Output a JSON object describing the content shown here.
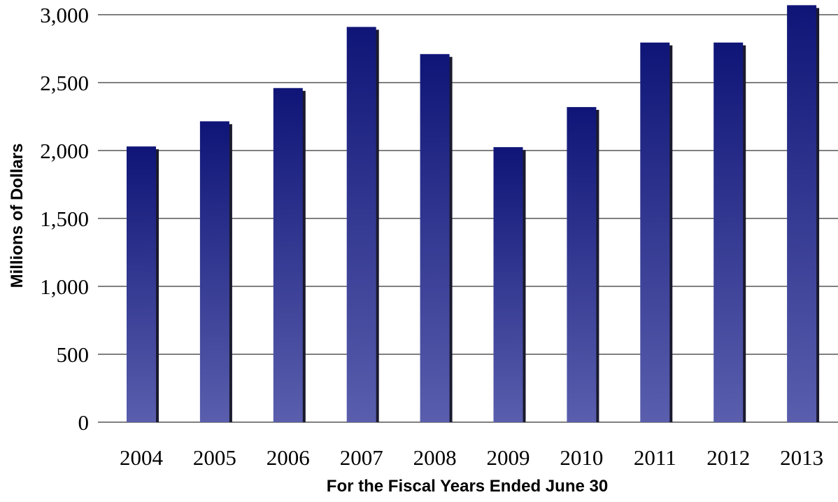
{
  "chart_data": {
    "type": "bar",
    "title": "",
    "xlabel": "For the Fiscal Years Ended June 30",
    "ylabel": "Millions of Dollars",
    "categories": [
      "2004",
      "2005",
      "2006",
      "2007",
      "2008",
      "2009",
      "2010",
      "2011",
      "2012",
      "2013"
    ],
    "values": [
      2030,
      2215,
      2460,
      2910,
      2710,
      2025,
      2320,
      2795,
      2795,
      3070
    ],
    "ylim": [
      0,
      3000
    ],
    "yticks": [
      0,
      500,
      1000,
      1500,
      2000,
      2500,
      3000
    ],
    "ytick_labels": [
      "0",
      "500",
      "1,000",
      "1,500",
      "2,000",
      "2,500",
      "3,000"
    ],
    "grid": true,
    "bar_color_top": "#0f1577",
    "bar_color_bottom": "#5a5ead",
    "shadow_color": "#1a1a2e"
  }
}
